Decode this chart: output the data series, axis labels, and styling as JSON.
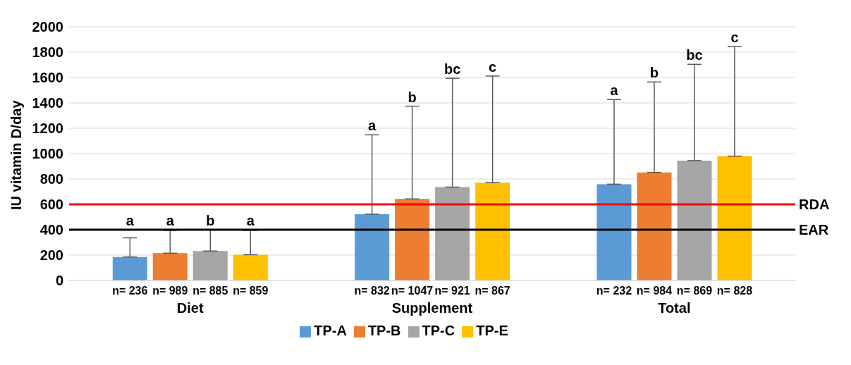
{
  "chart_data": {
    "type": "bar",
    "ylabel": "IU vitamin D/day",
    "categories": [
      "Diet",
      "Supplement",
      "Total"
    ],
    "series": [
      {
        "name": "TP-A",
        "color": "#5b9bd5",
        "values": [
          185,
          522,
          759
        ],
        "errors": [
          [
            185,
            336
          ],
          [
            522,
            1148
          ],
          [
            759,
            1426
          ]
        ]
      },
      {
        "name": "TP-B",
        "color": "#ed7d31",
        "values": [
          215,
          643,
          852
        ],
        "errors": [
          [
            215,
            395
          ],
          [
            643,
            1374
          ],
          [
            852,
            1565
          ]
        ]
      },
      {
        "name": "TP-C",
        "color": "#a5a5a5",
        "values": [
          232,
          736,
          945
        ],
        "errors": [
          [
            232,
            400
          ],
          [
            736,
            1594
          ],
          [
            945,
            1704
          ]
        ]
      },
      {
        "name": "TP-E",
        "color": "#ffc000",
        "values": [
          203,
          771,
          980
        ],
        "errors": [
          [
            203,
            395
          ],
          [
            771,
            1612
          ],
          [
            980,
            1843
          ]
        ]
      }
    ],
    "ylim": [
      0,
      2000
    ],
    "yticks": [
      0,
      200,
      400,
      600,
      800,
      1000,
      1200,
      1400,
      1600,
      1800,
      2000
    ],
    "grid": "y",
    "legend": "bottom",
    "ref_lines": [
      {
        "axis": "y",
        "value": 600,
        "label": "RDA",
        "color": "#ff0000"
      },
      {
        "axis": "y",
        "value": 400,
        "label": "EAR",
        "color": "#000000"
      }
    ],
    "annotations": [
      "a",
      "a",
      "b",
      "a",
      "a",
      "b",
      "bc",
      "c",
      "a",
      "b",
      "bc",
      "c",
      "n= 236",
      "n= 989",
      "n= 885",
      "n= 859",
      "n= 832",
      "n= 1047",
      "n= 921",
      "n= 867",
      "n= 232",
      "n= 984",
      "n= 869",
      "n= 828"
    ]
  }
}
